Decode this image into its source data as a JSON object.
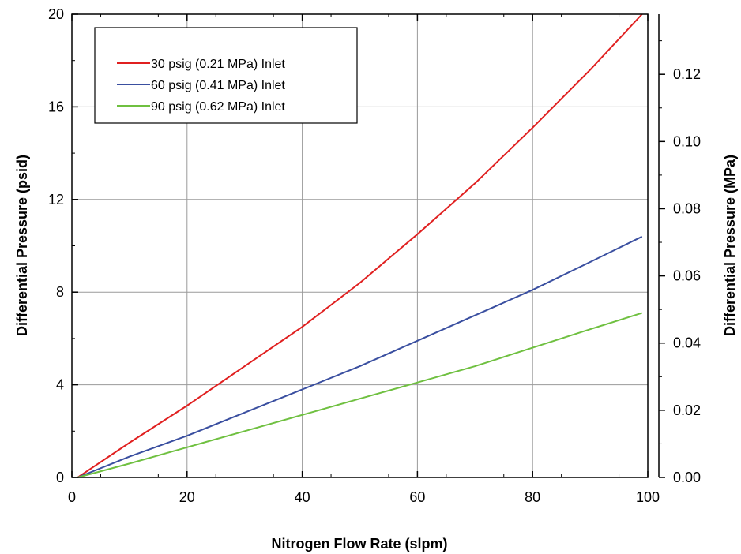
{
  "chart_data": {
    "type": "line",
    "title": "",
    "xlabel": "Nitrogen Flow Rate (slpm)",
    "ylabel": "Differential Pressure (psid)",
    "y2label": "Differential Pressure (MPa)",
    "xlim": [
      0,
      100
    ],
    "ylim": [
      0,
      20
    ],
    "y2lim": [
      0,
      0.1379
    ],
    "x_ticks": [
      "0",
      "20",
      "40",
      "60",
      "80",
      "100"
    ],
    "y_ticks": [
      "0",
      "4",
      "8",
      "12",
      "16",
      "20"
    ],
    "y2_ticks": [
      "0.00",
      "0.02",
      "0.04",
      "0.06",
      "0.08",
      "0.10",
      "0.12"
    ],
    "y2_tick_values": [
      0,
      0.02,
      0.04,
      0.06,
      0.08,
      0.1,
      0.12
    ],
    "grid": true,
    "legend_position": "top-left",
    "x": [
      1,
      10,
      20,
      30,
      40,
      50,
      60,
      70,
      80,
      90,
      99
    ],
    "series": [
      {
        "name": "30 psig (0.21 MPa) Inlet",
        "color": "#e02020",
        "values": [
          0,
          1.5,
          3.1,
          4.8,
          6.5,
          8.4,
          10.5,
          12.7,
          15.1,
          17.6,
          20.0
        ]
      },
      {
        "name": "60 psig (0.41 MPa) Inlet",
        "color": "#3a4fa0",
        "values": [
          0,
          0.9,
          1.8,
          2.8,
          3.8,
          4.8,
          5.9,
          7.0,
          8.1,
          9.3,
          10.4
        ]
      },
      {
        "name": "90 psig (0.62 MPa) Inlet",
        "color": "#6fc040",
        "values": [
          0,
          0.6,
          1.3,
          2.0,
          2.7,
          3.4,
          4.1,
          4.8,
          5.6,
          6.4,
          7.1
        ]
      }
    ]
  }
}
